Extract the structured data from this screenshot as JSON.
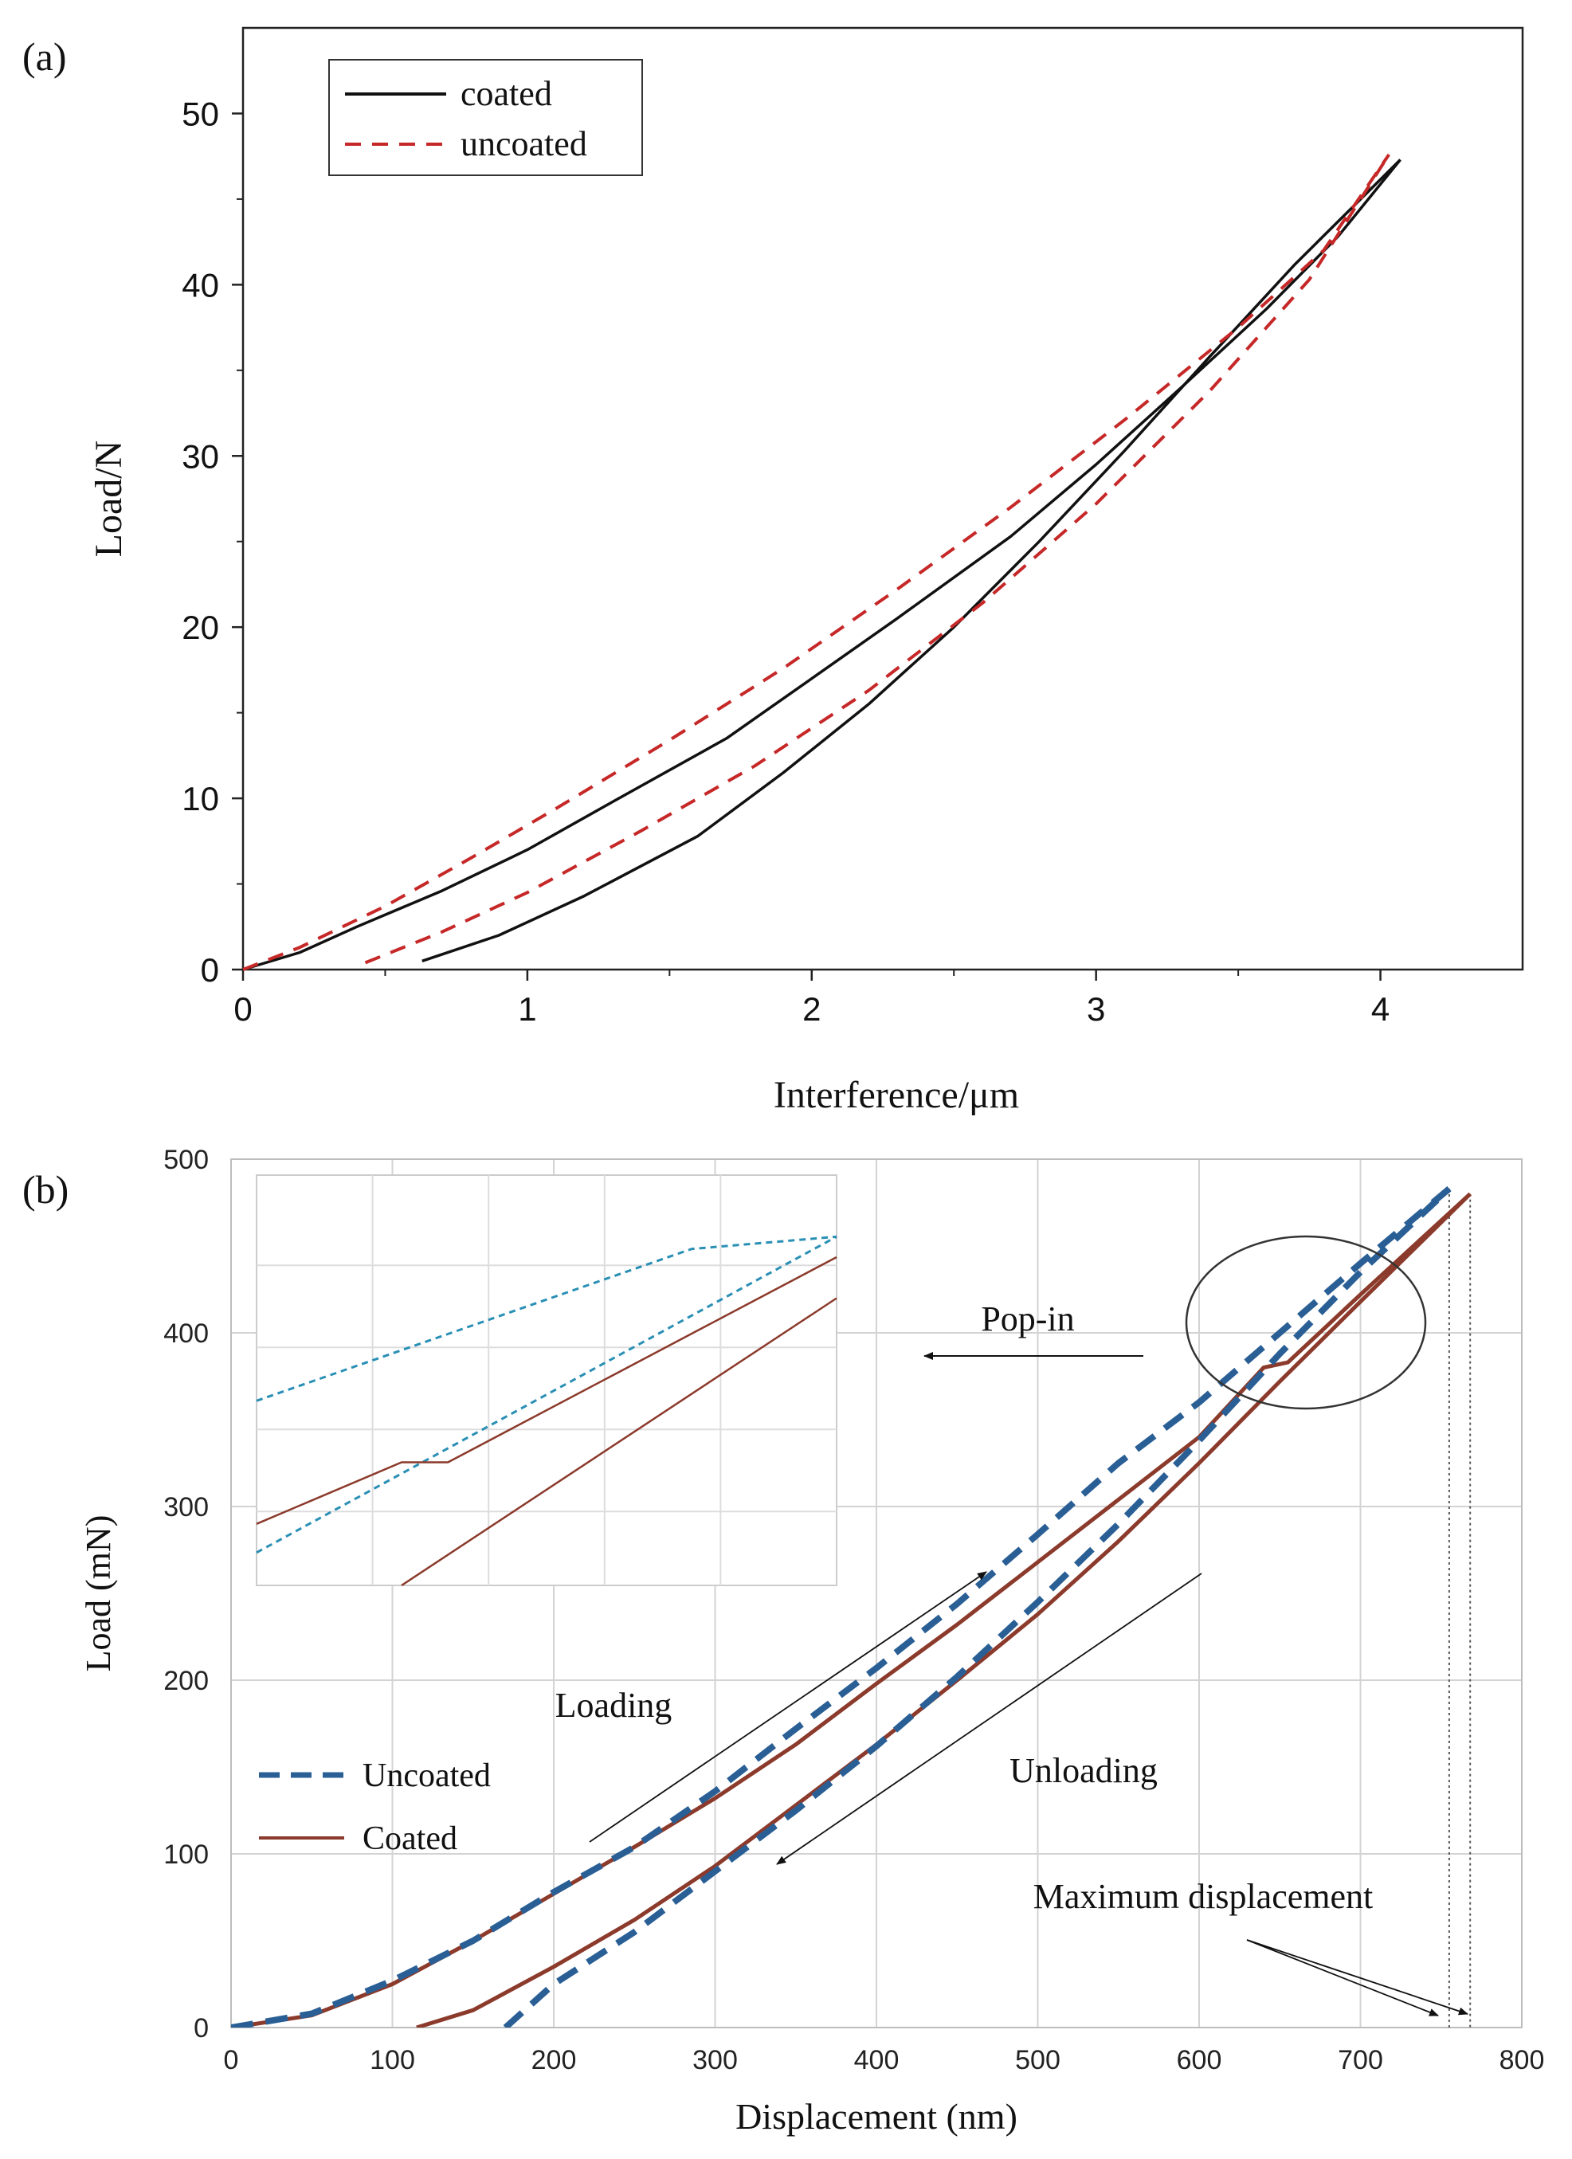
{
  "chart_data": [
    {
      "panel_label": "(a)",
      "type": "line",
      "xlabel": "Interference/μm",
      "ylabel": "Load/N",
      "xlim": [
        0,
        4.5
      ],
      "ylim": [
        0,
        55
      ],
      "xticks": [
        0,
        1,
        2,
        3,
        4
      ],
      "yticks": [
        0,
        10,
        20,
        30,
        40,
        50
      ],
      "legend_position": "top-left",
      "series": [
        {
          "name": "coated",
          "color": "#111111",
          "style": "solid",
          "loading": [
            [
              0,
              0
            ],
            [
              0.2,
              1
            ],
            [
              0.4,
              2.5
            ],
            [
              0.7,
              4.6
            ],
            [
              1.0,
              7
            ],
            [
              1.3,
              9.8
            ],
            [
              1.7,
              13.5
            ],
            [
              2.0,
              17
            ],
            [
              2.3,
              20.5
            ],
            [
              2.7,
              25.3
            ],
            [
              3.0,
              29.5
            ],
            [
              3.3,
              34
            ],
            [
              3.6,
              38.6
            ],
            [
              3.85,
              42.8
            ],
            [
              4.07,
              47.3
            ]
          ],
          "unloading": [
            [
              0.63,
              0.5
            ],
            [
              0.9,
              2
            ],
            [
              1.2,
              4.3
            ],
            [
              1.6,
              7.8
            ],
            [
              1.9,
              11.5
            ],
            [
              2.2,
              15.5
            ],
            [
              2.5,
              20
            ],
            [
              2.8,
              25
            ],
            [
              3.1,
              30.3
            ],
            [
              3.4,
              35.8
            ],
            [
              3.7,
              41.2
            ],
            [
              4.07,
              47.3
            ]
          ]
        },
        {
          "name": "uncoated",
          "color": "#c62828",
          "style": "dashed",
          "loading": [
            [
              0,
              0
            ],
            [
              0.2,
              1.3
            ],
            [
              0.5,
              3.7
            ],
            [
              0.8,
              6.5
            ],
            [
              1.1,
              9.4
            ],
            [
              1.5,
              13.4
            ],
            [
              1.9,
              17.6
            ],
            [
              2.3,
              22.2
            ],
            [
              2.7,
              27
            ],
            [
              3.1,
              32.1
            ],
            [
              3.5,
              37.5
            ],
            [
              3.8,
              42
            ],
            [
              4.03,
              47.6
            ]
          ],
          "unloading": [
            [
              0.43,
              0.4
            ],
            [
              0.7,
              2.2
            ],
            [
              1.0,
              4.5
            ],
            [
              1.4,
              8.1
            ],
            [
              1.8,
              11.9
            ],
            [
              2.2,
              16.3
            ],
            [
              2.6,
              21.4
            ],
            [
              3.0,
              27.2
            ],
            [
              3.4,
              33.8
            ],
            [
              3.75,
              40.3
            ],
            [
              4.03,
              47.6
            ]
          ]
        }
      ]
    },
    {
      "panel_label": "(b)",
      "type": "line",
      "xlabel": "Displacement  (nm)",
      "ylabel": "Load (mN)",
      "xlim": [
        0,
        800
      ],
      "ylim": [
        0,
        500
      ],
      "xticks": [
        0,
        100,
        200,
        300,
        400,
        500,
        600,
        700,
        800
      ],
      "yticks": [
        0,
        100,
        200,
        300,
        400,
        500
      ],
      "grid": true,
      "legend_position": "left-center",
      "series": [
        {
          "name": "Uncoated",
          "color": "#2a5f95",
          "style": "dashed",
          "loading": [
            [
              0,
              0
            ],
            [
              50,
              8
            ],
            [
              100,
              27
            ],
            [
              150,
              50
            ],
            [
              200,
              78
            ],
            [
              250,
              104
            ],
            [
              300,
              136
            ],
            [
              350,
              172
            ],
            [
              400,
              207
            ],
            [
              450,
              244
            ],
            [
              500,
              284
            ],
            [
              550,
              325
            ],
            [
              600,
              360
            ],
            [
              650,
              400
            ],
            [
              700,
              440
            ],
            [
              755,
              483
            ]
          ],
          "unloading": [
            [
              170,
              0
            ],
            [
              200,
              25
            ],
            [
              250,
              55
            ],
            [
              300,
              90
            ],
            [
              350,
              125
            ],
            [
              400,
              162
            ],
            [
              450,
              202
            ],
            [
              500,
              245
            ],
            [
              550,
              290
            ],
            [
              600,
              338
            ],
            [
              650,
              388
            ],
            [
              700,
              435
            ],
            [
              755,
              483
            ]
          ]
        },
        {
          "name": "Coated",
          "color": "#8b3a2b",
          "style": "solid",
          "loading": [
            [
              0,
              0
            ],
            [
              50,
              7
            ],
            [
              100,
              25
            ],
            [
              150,
              50
            ],
            [
              200,
              77
            ],
            [
              250,
              104
            ],
            [
              300,
              132
            ],
            [
              350,
              163
            ],
            [
              400,
              198
            ],
            [
              450,
              232
            ],
            [
              500,
              268
            ],
            [
              550,
              304
            ],
            [
              600,
              340
            ],
            [
              640,
              380
            ],
            [
              655,
              383
            ],
            [
              700,
              422
            ],
            [
              768,
              480
            ]
          ],
          "unloading": [
            [
              115,
              0
            ],
            [
              150,
              10
            ],
            [
              200,
              35
            ],
            [
              250,
              62
            ],
            [
              300,
              93
            ],
            [
              350,
              128
            ],
            [
              400,
              163
            ],
            [
              450,
              200
            ],
            [
              500,
              238
            ],
            [
              550,
              280
            ],
            [
              600,
              325
            ],
            [
              650,
              372
            ],
            [
              700,
              418
            ],
            [
              768,
              480
            ]
          ]
        }
      ],
      "inset": {
        "series": [
          {
            "name": "Uncoated loading",
            "color": "#2a8fb5",
            "points": [
              [
                0,
                0.45
              ],
              [
                0.75,
                0.82
              ],
              [
                1,
                0.85
              ]
            ]
          },
          {
            "name": "Uncoated unloading",
            "color": "#2a8fb5",
            "points": [
              [
                0,
                0.08
              ],
              [
                1,
                0.85
              ]
            ]
          },
          {
            "name": "Coated loading",
            "color": "#8b3a2b",
            "points": [
              [
                0,
                0.15
              ],
              [
                0.25,
                0.3
              ],
              [
                0.33,
                0.3
              ],
              [
                1,
                0.8
              ]
            ]
          },
          {
            "name": "Coated unloading",
            "color": "#8b3a2b",
            "points": [
              [
                0.25,
                0
              ],
              [
                1,
                0.7
              ]
            ]
          }
        ]
      },
      "annotations": {
        "popin": "Pop-in",
        "loading": "Loading",
        "unloading": "Unloading",
        "max_displacement": "Maximum displacement"
      }
    }
  ]
}
